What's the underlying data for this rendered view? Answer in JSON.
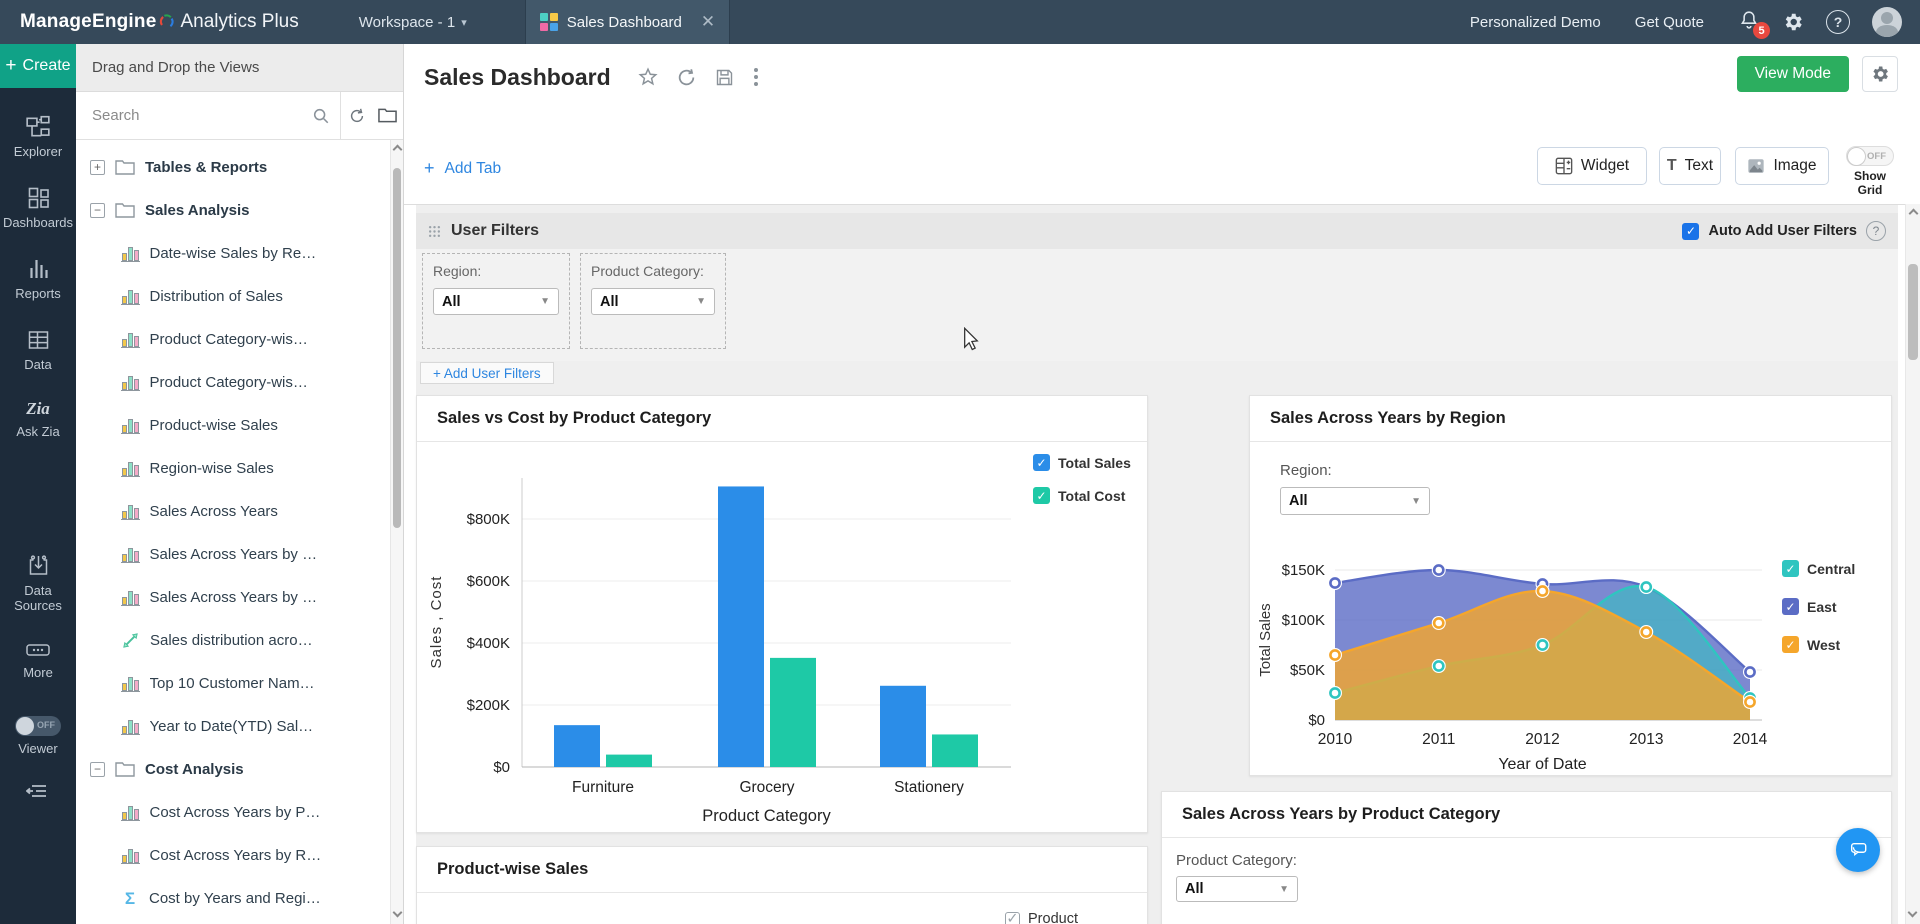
{
  "topbar": {
    "brand_bold": "ManageEngine",
    "brand_light": "Analytics Plus",
    "workspace_label": "Workspace - 1",
    "tab_label": "Sales Dashboard",
    "demo_link": "Personalized Demo",
    "quote_link": "Get Quote",
    "notification_count": "5"
  },
  "sidebar": {
    "create_label": "Create",
    "items": [
      {
        "id": "explorer",
        "label": "Explorer",
        "icon": "hierarchy-icon"
      },
      {
        "id": "dashboards",
        "label": "Dashboards",
        "icon": "dashboard-grid-icon"
      },
      {
        "id": "reports",
        "label": "Reports",
        "icon": "bar-chart-icon"
      },
      {
        "id": "data",
        "label": "Data",
        "icon": "table-icon"
      },
      {
        "id": "ask-zia",
        "label": "Ask Zia",
        "icon": "zia-icon"
      },
      {
        "id": "data-sources",
        "label": "Data Sources",
        "icon": "import-icon"
      },
      {
        "id": "more",
        "label": "More",
        "icon": "ellipsis-icon"
      }
    ],
    "viewer_label": "Viewer",
    "viewer_state": "OFF"
  },
  "tree_panel": {
    "header": "Drag and Drop the Views",
    "search_placeholder": "Search",
    "nodes": [
      {
        "icon": "folder",
        "expander": "plus",
        "label": "Tables & Reports"
      },
      {
        "icon": "folder",
        "expander": "minus",
        "label": "Sales Analysis"
      },
      {
        "icon": "chart",
        "label": "Date-wise Sales by Re…"
      },
      {
        "icon": "chart",
        "label": "Distribution of Sales"
      },
      {
        "icon": "chart",
        "label": "Product Category-wis…"
      },
      {
        "icon": "chart",
        "label": "Product Category-wis…"
      },
      {
        "icon": "chart",
        "label": "Product-wise Sales"
      },
      {
        "icon": "chart",
        "label": "Region-wise Sales"
      },
      {
        "icon": "chart",
        "label": "Sales Across Years"
      },
      {
        "icon": "chart",
        "label": "Sales Across Years by …"
      },
      {
        "icon": "chart",
        "label": "Sales Across Years by …"
      },
      {
        "icon": "trend",
        "label": "Sales distribution acro…"
      },
      {
        "icon": "chart",
        "label": "Top 10 Customer Nam…"
      },
      {
        "icon": "chart",
        "label": "Year to Date(YTD) Sal…"
      },
      {
        "icon": "folder",
        "expander": "minus",
        "label": "Cost Analysis"
      },
      {
        "icon": "chart",
        "label": "Cost Across Years by P…"
      },
      {
        "icon": "chart",
        "label": "Cost Across Years by R…"
      },
      {
        "icon": "sigma",
        "label": "Cost by Years and Regi…"
      }
    ]
  },
  "page": {
    "title": "Sales Dashboard",
    "view_mode_label": "View Mode",
    "add_tab_label": "Add Tab",
    "widget_label": "Widget",
    "text_label": "Text",
    "image_label": "Image",
    "show_grid_label": "Show Grid",
    "show_grid_state": "OFF"
  },
  "user_filters": {
    "title": "User Filters",
    "auto_add_label": "Auto Add User Filters",
    "add_filter_label": "+ Add User Filters",
    "filters": [
      {
        "label": "Region:",
        "value": "All"
      },
      {
        "label": "Product Category:",
        "value": "All"
      }
    ]
  },
  "cards": {
    "product_wise_title": "Product-wise Sales",
    "product_wise_legend_partial": "Product",
    "by_category_title": "Sales Across Years by Product Category",
    "by_category_filter_label": "Product Category:",
    "by_category_filter_value": "All"
  },
  "chart_data": [
    {
      "type": "bar",
      "title": "Sales vs Cost by Product Category",
      "categories": [
        "Furniture",
        "Grocery",
        "Stationery"
      ],
      "series": [
        {
          "name": "Total Sales",
          "color": "#2b8de8",
          "values": [
            135000,
            905000,
            262000
          ]
        },
        {
          "name": "Total Cost",
          "color": "#1ec9a6",
          "values": [
            40000,
            352000,
            105000
          ]
        }
      ],
      "xlabel": "Product Category",
      "ylabel": "Sales , Cost",
      "ylim": [
        0,
        940000
      ],
      "yticks": [
        0,
        200000,
        400000,
        600000,
        800000
      ],
      "ytick_labels": [
        "$0",
        "$200K",
        "$400K",
        "$600K",
        "$800K"
      ],
      "legend_position": "top-right",
      "grid": true
    },
    {
      "type": "area",
      "title": "Sales Across Years by Region",
      "x": [
        "2010",
        "2011",
        "2012",
        "2013",
        "2014"
      ],
      "series": [
        {
          "name": "East",
          "color": "#5b6cc5",
          "fill_opacity": 0.8,
          "values": [
            137000,
            150000,
            136000,
            133000,
            48000
          ]
        },
        {
          "name": "Central",
          "color": "#2fc5c0",
          "fill_opacity": 0.55,
          "values": [
            27000,
            54000,
            75000,
            133000,
            22000
          ]
        },
        {
          "name": "West",
          "color": "#f5a62b",
          "fill_opacity": 0.8,
          "values": [
            65000,
            97000,
            129000,
            88000,
            18000
          ]
        }
      ],
      "legend_order": [
        "Central",
        "East",
        "West"
      ],
      "xlabel": "Year of Date",
      "ylabel": "Total Sales",
      "ylim": [
        0,
        160000
      ],
      "yticks": [
        0,
        50000,
        100000,
        150000
      ],
      "ytick_labels": [
        "$0",
        "$50K",
        "$100K",
        "$150K"
      ],
      "filter_label": "Region:",
      "filter_value": "All",
      "legend_position": "right",
      "grid": true
    }
  ]
}
